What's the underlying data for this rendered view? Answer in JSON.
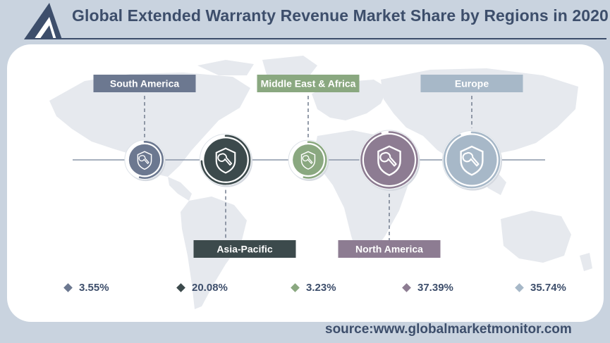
{
  "header": {
    "title": "Global Extended Warranty Revenue Market Share by Regions in 2020"
  },
  "source": "source:www.globalmarketmonitor.com",
  "chart_data": {
    "type": "pie",
    "title": "Global Extended Warranty Revenue Market Share by Regions in 2020",
    "unit": "%",
    "series": [
      {
        "name": "South America",
        "value": 3.55,
        "label": "3.55%",
        "color": "#6c7890",
        "label_pos": "top"
      },
      {
        "name": "Asia-Pacific",
        "value": 20.08,
        "label": "20.08%",
        "color": "#3c4a4c",
        "label_pos": "bottom"
      },
      {
        "name": "Middle East & Africa",
        "value": 3.23,
        "label": "3.23%",
        "color": "#8aa880",
        "label_pos": "top"
      },
      {
        "name": "North America",
        "value": 37.39,
        "label": "37.39%",
        "color": "#8d7c92",
        "label_pos": "bottom"
      },
      {
        "name": "Europe",
        "value": 35.74,
        "label": "35.74%",
        "color": "#a7b8c8",
        "label_pos": "top"
      }
    ]
  },
  "icons": {
    "region_icon": "shield-wrench-icon",
    "logo": "triangle-logo-icon",
    "marker": "diamond-icon"
  }
}
